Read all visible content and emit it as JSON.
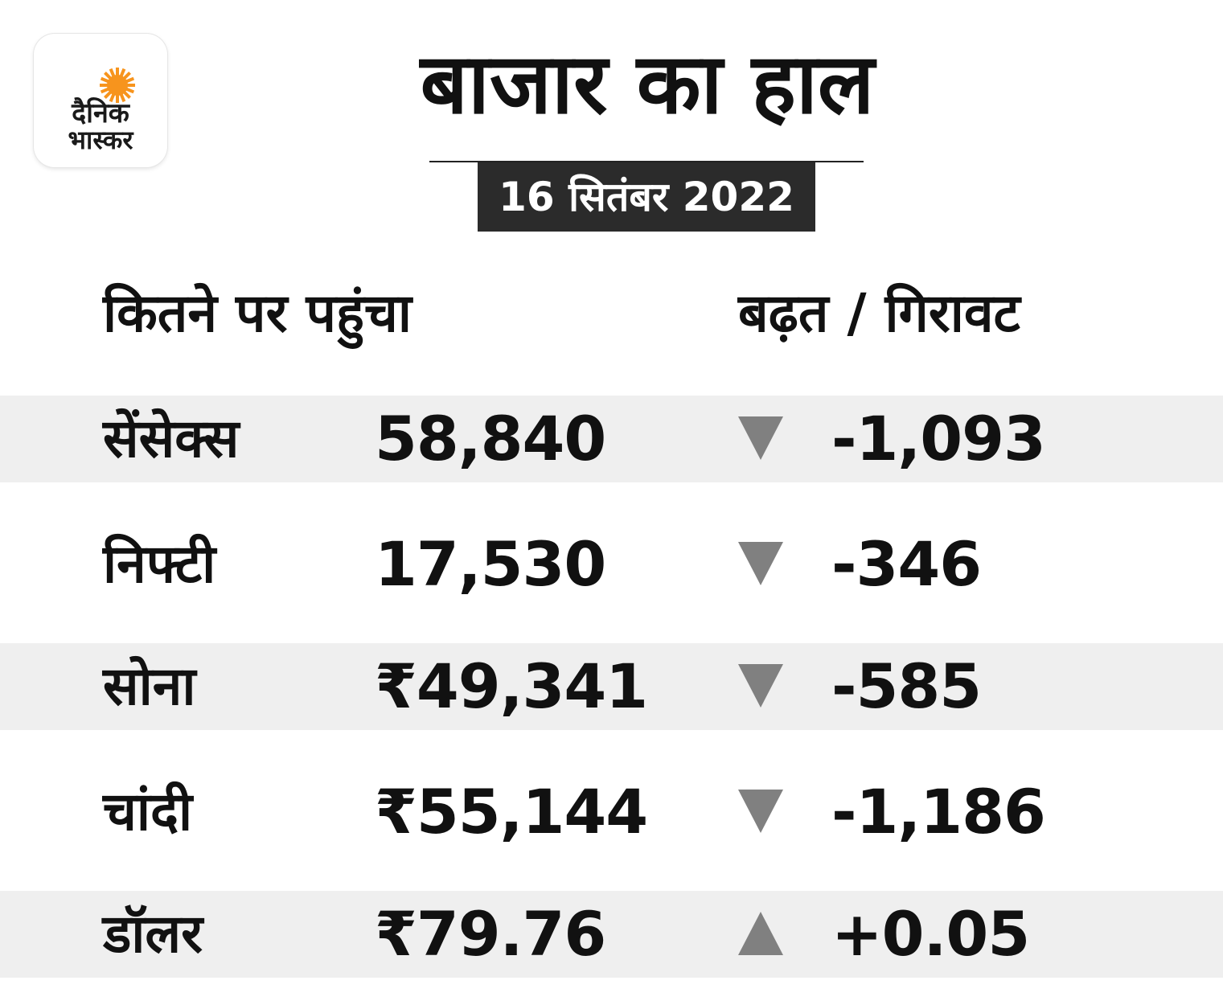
{
  "logo": {
    "line1": "दैनिक",
    "line2": "भास्कर",
    "sun_color": "#f7941d"
  },
  "title": "बाजार का हाल",
  "date": "16 सितंबर 2022",
  "headers": {
    "value": "कितने पर पहुंचा",
    "change": "बढ़त / गिरावट"
  },
  "colors": {
    "row_shade": "#efefef",
    "date_bg": "#2b2b2b",
    "arrow": "#808080"
  },
  "rows": [
    {
      "name": "सेंसेक्स",
      "value": "58,840",
      "direction": "down",
      "change": "-1,093"
    },
    {
      "name": "निफ्टी",
      "value": "17,530",
      "direction": "down",
      "change": "-346"
    },
    {
      "name": "सोना",
      "value": "₹49,341",
      "direction": "down",
      "change": "-585"
    },
    {
      "name": "चांदी",
      "value": "₹55,144",
      "direction": "down",
      "change": "-1,186"
    },
    {
      "name": "डॉलर",
      "value": "₹79.76",
      "direction": "up",
      "change": "+0.05"
    }
  ]
}
